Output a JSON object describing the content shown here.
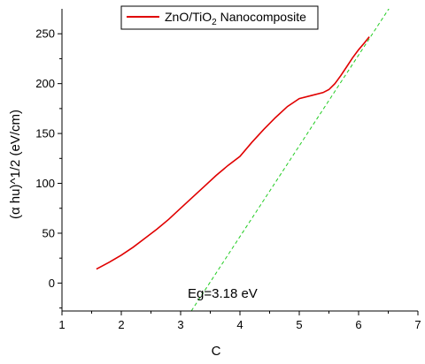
{
  "chart_data": {
    "type": "line",
    "legend": {
      "placement": "top-center",
      "label_main": "ZnO/TiO",
      "label_sub": "2",
      "label_tail": " Nanocomposite"
    },
    "xlabel": "C",
    "ylabel": "(α hu)^1/2 (eV/cm)",
    "xlim": [
      1,
      7
    ],
    "ylim": [
      -28,
      275
    ],
    "xticks": [
      "1",
      "2",
      "3",
      "4",
      "5",
      "6",
      "7"
    ],
    "yticks": [
      "0",
      "50",
      "100",
      "150",
      "200",
      "250"
    ],
    "grid": false,
    "series": [
      {
        "name": "ZnO/TiO2 Nanocomposite",
        "color": "#e00000",
        "x": [
          1.58,
          1.8,
          2.0,
          2.2,
          2.4,
          2.6,
          2.8,
          3.0,
          3.2,
          3.4,
          3.6,
          3.8,
          4.0,
          4.2,
          4.4,
          4.6,
          4.8,
          5.0,
          5.2,
          5.4,
          5.5,
          5.6,
          5.7,
          5.8,
          5.9,
          6.0,
          6.1,
          6.18
        ],
        "y": [
          14,
          21,
          28,
          36,
          45,
          54,
          64,
          75,
          86,
          97,
          108,
          118,
          127,
          141,
          154,
          166,
          177,
          185,
          188,
          191,
          194,
          200,
          208,
          217,
          226,
          234,
          241,
          247
        ]
      },
      {
        "name": "",
        "color": "#22cc22",
        "style": "dashed",
        "x": [
          3.18,
          6.62
        ],
        "y": [
          -28,
          285
        ]
      }
    ],
    "annotations": [
      {
        "text": "Eg=3.18 eV",
        "x": 3.5,
        "y": -7
      }
    ]
  }
}
